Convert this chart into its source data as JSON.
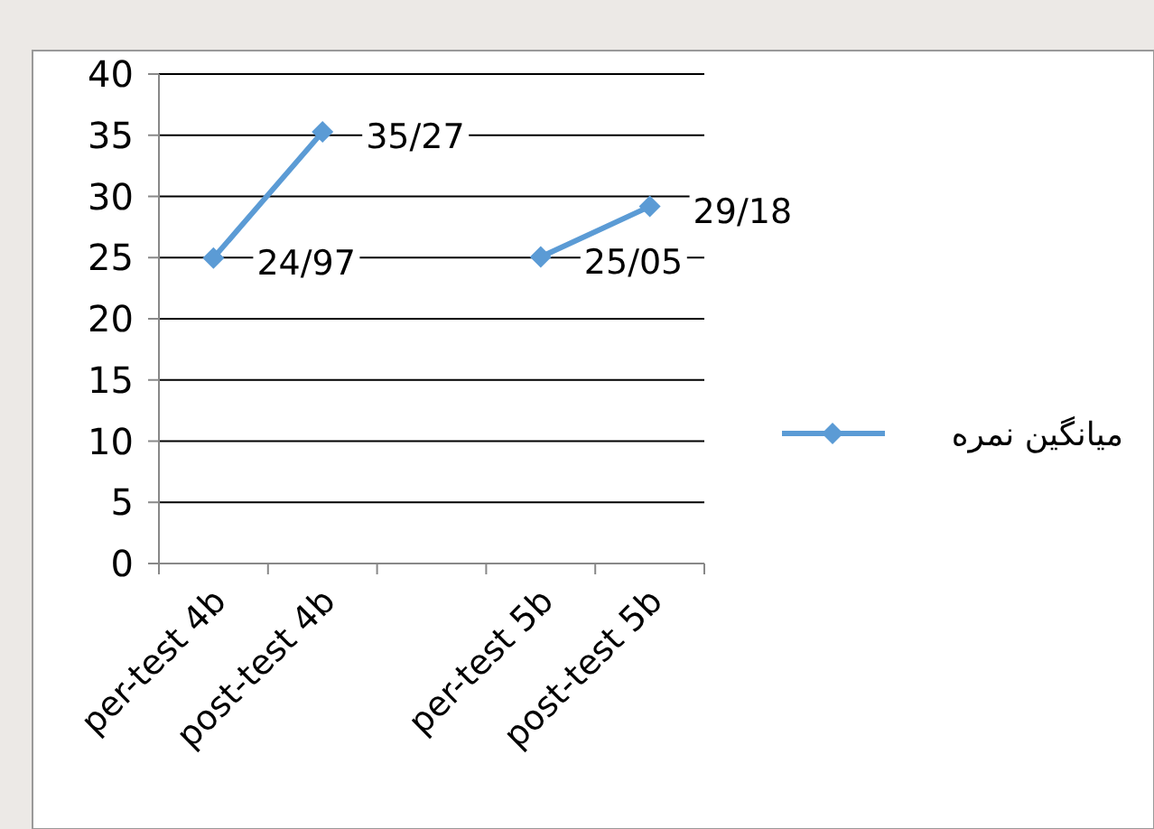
{
  "chart_data": {
    "type": "line",
    "categories": [
      "per-test  4b",
      "post-test  4b",
      null,
      "per-test  5b",
      "post-test  5b"
    ],
    "series": [
      {
        "name": "میانگین نمره",
        "color": "#5b9bd5",
        "values": [
          24.97,
          35.27,
          null,
          25.05,
          29.18
        ],
        "value_labels": [
          "24/97",
          "35/27",
          null,
          "25/05",
          "29/18"
        ]
      }
    ],
    "ylim": [
      0,
      40
    ],
    "yticks": [
      0,
      5,
      10,
      15,
      20,
      25,
      30,
      35,
      40
    ],
    "grid": "y",
    "legend": "right",
    "marker": "diamond",
    "line_style": "solid"
  }
}
